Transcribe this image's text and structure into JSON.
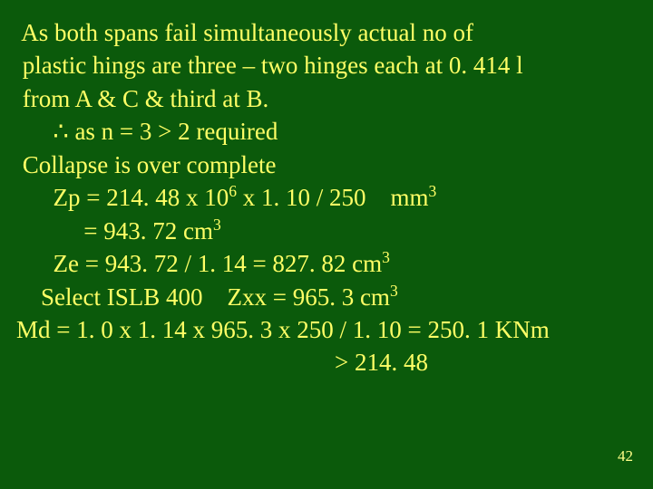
{
  "background_color": "#0b5a0b",
  "text_color": "#ffff66",
  "font_family": "Times New Roman",
  "font_size_pt": 20,
  "line_height": 1.35,
  "page_number": "42",
  "lines": {
    "l1": " As both spans fail simultaneously actual no of",
    "l2": " plastic hings are three – two hinges each at 0. 414 l",
    "l3": " from A & C & third at B.",
    "l4a": "      ",
    "l4sym": "∴",
    "l4b": " as n = 3 ",
    "l4gt": ">",
    "l4c": " 2 required",
    "l5": " Collapse is over complete",
    "l6a": "      Zp = 214. 48 x 10",
    "l6s": "6",
    "l6b": " x 1. 10 / 250    mm",
    "l6s2": "3",
    "l7a": "           = 943. 72 cm",
    "l7s": "3",
    "l8a": "      Ze = 943. 72 / 1. 14 = 827. 82 cm",
    "l8s": "3",
    "l9a": "    Select ISLB 400    Zxx = 965. 3 cm",
    "l9s": "3",
    "l10": "Md = 1. 0 x 1. 14 x 965. 3 x 250 / 1. 10 = 250. 1 KNm",
    "l11a": "                                                    ",
    "l11gt": ">",
    "l11b": " 214. 48"
  }
}
